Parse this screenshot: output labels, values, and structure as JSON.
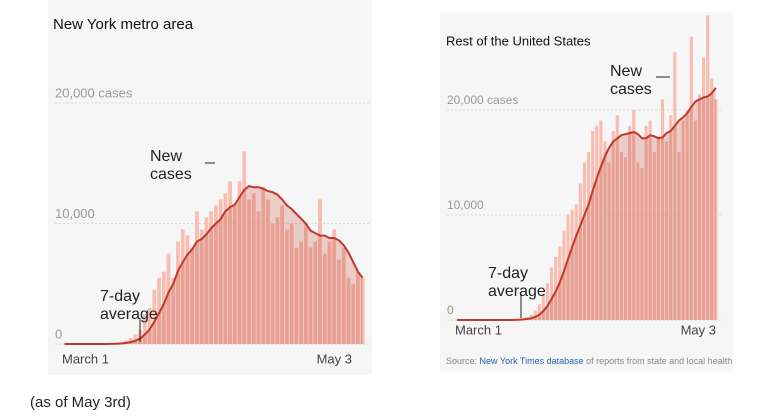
{
  "chart_data": [
    {
      "type": "bar",
      "title": "New York metro area",
      "categories": [
        "March 1",
        null,
        null,
        null,
        null,
        null,
        null,
        null,
        null,
        null,
        null,
        null,
        null,
        null,
        null,
        null,
        null,
        null,
        null,
        null,
        null,
        null,
        null,
        null,
        null,
        null,
        null,
        null,
        null,
        null,
        null,
        null,
        null,
        null,
        null,
        null,
        null,
        null,
        null,
        null,
        null,
        null,
        null,
        null,
        null,
        null,
        null,
        null,
        null,
        null,
        null,
        null,
        null,
        null,
        null,
        null,
        null,
        null,
        null,
        null,
        null,
        null,
        null,
        "May 3"
      ],
      "series": [
        {
          "name": "New cases",
          "type": "bar",
          "color": "#f8bcb0",
          "values": [
            0,
            0,
            0,
            0,
            0,
            0,
            0,
            0,
            0,
            0,
            50,
            100,
            150,
            300,
            500,
            800,
            1200,
            2500,
            3000,
            4500,
            5500,
            6000,
            7500,
            5500,
            8500,
            9500,
            9000,
            8000,
            11000,
            9500,
            10500,
            11000,
            11500,
            12000,
            12500,
            13500,
            11500,
            13500,
            16000,
            12000,
            12500,
            11000,
            13000,
            12000,
            10000,
            10500,
            11500,
            9500,
            10000,
            8000,
            8500,
            10000,
            8000,
            8500,
            12000,
            7500,
            8500,
            9500,
            7000,
            8000,
            5500,
            5000,
            6000,
            5500
          ]
        },
        {
          "name": "7-day average",
          "type": "line",
          "color": "#c0392b",
          "values": [
            0,
            0,
            0,
            0,
            0,
            0,
            0,
            0,
            0,
            0,
            7,
            21,
            43,
            86,
            157,
            271,
            443,
            793,
            1207,
            1843,
            2571,
            3314,
            4286,
            5000,
            6071,
            6786,
            7429,
            7857,
            8500,
            8714,
            9107,
            9607,
            10000,
            10357,
            11000,
            11357,
            11571,
            12200,
            12800,
            13100,
            13000,
            13000,
            12900,
            12700,
            12600,
            12400,
            12000,
            11500,
            11200,
            10800,
            10400,
            10000,
            9400,
            9200,
            9000,
            9000,
            8800,
            8800,
            8600,
            8200,
            7600,
            6800,
            6000,
            5500
          ]
        }
      ],
      "ylim": [
        0,
        25000
      ],
      "yticks": [
        0,
        {
          "value": 10000,
          "label": "10,000"
        },
        {
          "value": 20000,
          "label": "20,000 cases"
        }
      ],
      "grid": true
    },
    {
      "type": "bar",
      "title": "Rest of the United States",
      "categories": [
        "March 1",
        null,
        null,
        null,
        null,
        null,
        null,
        null,
        null,
        null,
        null,
        null,
        null,
        null,
        null,
        null,
        null,
        null,
        null,
        null,
        null,
        null,
        null,
        null,
        null,
        null,
        null,
        null,
        null,
        null,
        null,
        null,
        null,
        null,
        null,
        null,
        null,
        null,
        null,
        null,
        null,
        null,
        null,
        null,
        null,
        null,
        null,
        null,
        null,
        null,
        null,
        null,
        null,
        null,
        null,
        null,
        null,
        null,
        null,
        null,
        null,
        null,
        null,
        "May 3"
      ],
      "series": [
        {
          "name": "New cases",
          "type": "bar",
          "color": "#f8bcb0",
          "values": [
            0,
            0,
            0,
            0,
            0,
            0,
            0,
            0,
            0,
            0,
            0,
            0,
            0,
            0,
            50,
            100,
            200,
            300,
            500,
            900,
            1500,
            2500,
            3500,
            5000,
            6000,
            7000,
            8500,
            10000,
            10500,
            11000,
            13000,
            15000,
            16000,
            18000,
            18500,
            19000,
            17000,
            15000,
            18000,
            19500,
            16000,
            15500,
            18500,
            20000,
            15000,
            14500,
            18500,
            19000,
            16000,
            17500,
            21000,
            17000,
            19500,
            25500,
            16000,
            19000,
            20000,
            27000,
            19000,
            21500,
            25000,
            29000,
            23000,
            21000
          ]
        },
        {
          "name": "7-day average",
          "type": "line",
          "color": "#c0392b",
          "values": [
            0,
            0,
            0,
            0,
            0,
            0,
            0,
            0,
            0,
            0,
            0,
            0,
            0,
            0,
            7,
            21,
            50,
            93,
            164,
            293,
            500,
            857,
            1343,
            2014,
            2714,
            3571,
            4643,
            5786,
            6929,
            8000,
            9000,
            10000,
            11000,
            12300,
            13500,
            14600,
            15600,
            16400,
            17000,
            17300,
            17600,
            17700,
            17800,
            17900,
            17700,
            17300,
            17300,
            17600,
            17500,
            17300,
            17400,
            17800,
            18000,
            18500,
            19000,
            19300,
            19700,
            20300,
            20800,
            21000,
            21200,
            21300,
            21600,
            22100
          ]
        }
      ],
      "ylim": [
        0,
        30000
      ],
      "yticks": [
        0,
        {
          "value": 10000,
          "label": "10,000"
        },
        {
          "value": 20000,
          "label": "20,000 cases"
        }
      ],
      "grid": true
    }
  ],
  "source": {
    "prefix": "Source:",
    "link": "New York Times database",
    "suffix": "of reports from state and local health"
  },
  "caption": "(as of May 3rd)"
}
